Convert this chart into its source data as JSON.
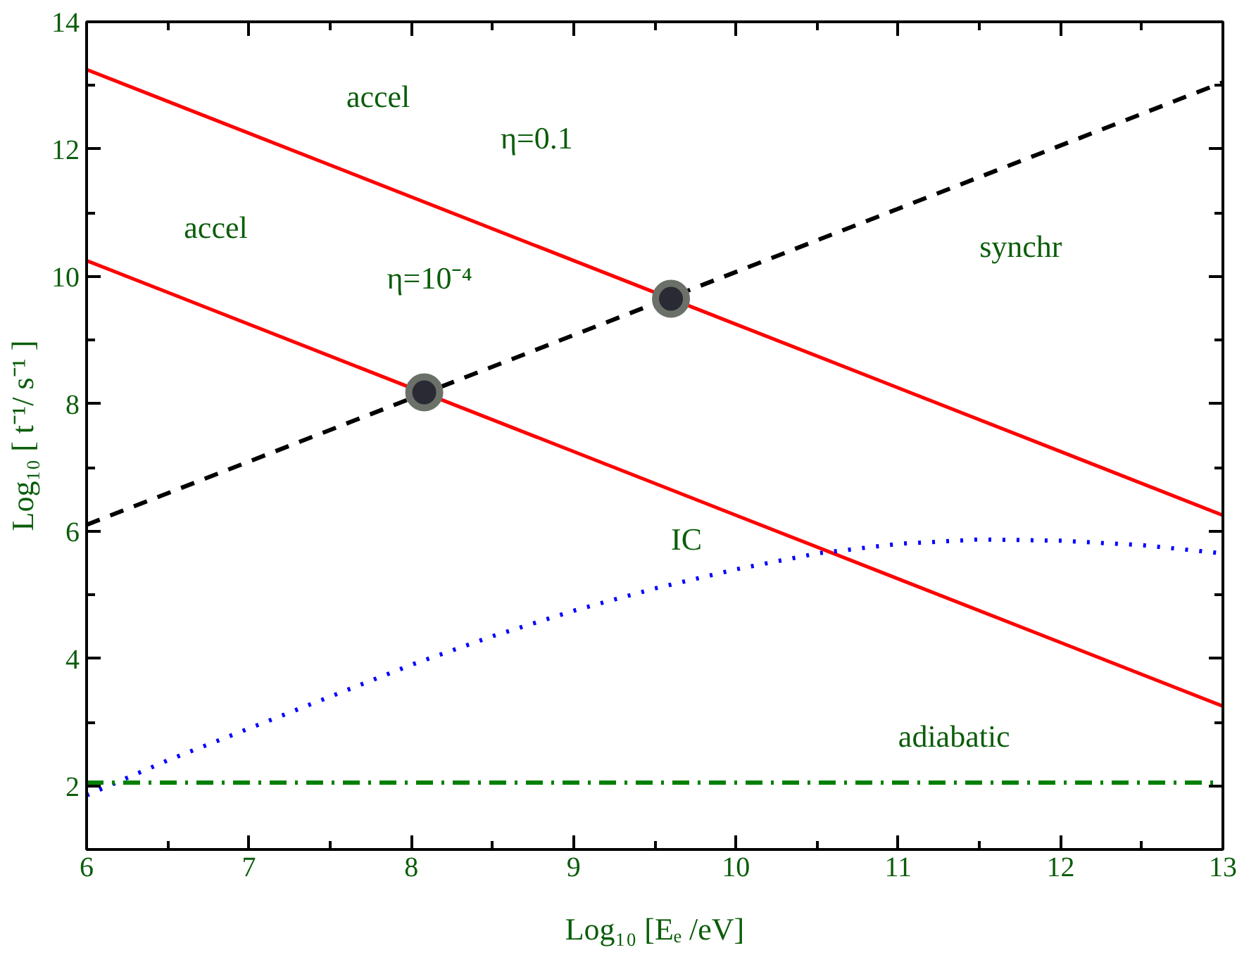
{
  "chart_data": {
    "type": "line",
    "xlabel": "Log₁₀ [Eₑ /eV]",
    "ylabel": "Log₁₀ [ t⁻¹/ s⁻¹ ]",
    "xlim": [
      6,
      13
    ],
    "ylim": [
      1,
      14
    ],
    "xticks": [
      6,
      {
        "value": 6.5,
        "label": null
      },
      7,
      {
        "value": 7.5,
        "label": null
      },
      8,
      {
        "value": 8.5,
        "label": null
      },
      9,
      {
        "value": 9.5,
        "label": null
      },
      10,
      {
        "value": 10.5,
        "label": null
      },
      11,
      {
        "value": 11.5,
        "label": null
      },
      12,
      {
        "value": 12.5,
        "label": null
      },
      13
    ],
    "yticks": [
      2,
      {
        "value": 3,
        "label": null
      },
      4,
      {
        "value": 5,
        "label": null
      },
      6,
      {
        "value": 7,
        "label": null
      },
      8,
      {
        "value": 9,
        "label": null
      },
      10,
      {
        "value": 11,
        "label": null
      },
      12,
      {
        "value": 13,
        "label": null
      },
      14
    ],
    "grid": false,
    "series": [
      {
        "name": "accel",
        "line_style": "solid",
        "color": "#ff0000",
        "x": [
          6,
          13
        ],
        "values": [
          13.25,
          6.25
        ]
      },
      {
        "name": "accel",
        "line_style": "solid",
        "color": "#ff0000",
        "x": [
          6,
          13
        ],
        "values": [
          10.25,
          3.25
        ]
      },
      {
        "name": "synchr",
        "line_style": "dashed",
        "color": "#000000",
        "x": [
          6,
          13
        ],
        "values": [
          6.1,
          13.05
        ]
      },
      {
        "name": "IC",
        "line_style": "dotted",
        "color": "#0000ff",
        "x": [
          6,
          6.5,
          7,
          7.5,
          8,
          8.5,
          9,
          9.5,
          10,
          10.5,
          11,
          11.5,
          12,
          12.5,
          13
        ],
        "values": [
          1.85,
          2.4,
          2.9,
          3.4,
          3.9,
          4.35,
          4.75,
          5.1,
          5.4,
          5.65,
          5.8,
          5.87,
          5.85,
          5.78,
          5.65
        ]
      },
      {
        "name": "adiabatic",
        "line_style": "dashdot",
        "color": "#008000",
        "x": [
          6,
          13
        ],
        "values": [
          2.05,
          2.05
        ]
      },
      {
        "type": "scatter",
        "marker": "circle",
        "color": "#2a2a35",
        "x": [
          8.08,
          9.6
        ],
        "values": [
          8.18,
          9.65
        ]
      }
    ],
    "annotations": [
      "η=0.1",
      "η=10⁻⁴"
    ]
  }
}
